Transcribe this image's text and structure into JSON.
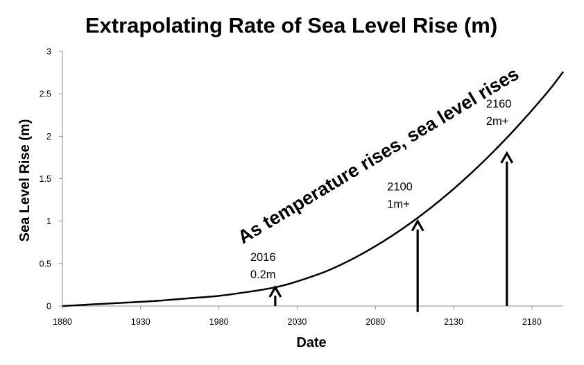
{
  "chart_data": {
    "type": "line",
    "title": "Extrapolating Rate of Sea Level Rise (m)",
    "xlabel": "Date",
    "ylabel": "Sea Level Rise (m)",
    "xlim": [
      1880,
      2200
    ],
    "ylim": [
      0,
      3
    ],
    "x_ticks": [
      1880,
      1930,
      1980,
      2030,
      2080,
      2130,
      2180
    ],
    "y_ticks": [
      0,
      0.5,
      1,
      1.5,
      2,
      2.5,
      3
    ],
    "y_tick_labels": [
      "0",
      "0.5",
      "1",
      "1.5",
      "2",
      "2.5",
      "3"
    ],
    "grid": false,
    "line_color": "#000000",
    "series": [
      {
        "x": [
          1880,
          1900,
          1920,
          1940,
          1960,
          1980,
          2000,
          2016,
          2030,
          2050,
          2070,
          2090,
          2110,
          2130,
          2150,
          2170,
          2190,
          2200
        ],
        "y": [
          0,
          0.02,
          0.04,
          0.06,
          0.09,
          0.12,
          0.17,
          0.22,
          0.29,
          0.42,
          0.6,
          0.82,
          1.08,
          1.38,
          1.72,
          2.1,
          2.52,
          2.76
        ]
      }
    ],
    "annotations": [
      {
        "year_label": "2016",
        "value_label": "0.2m",
        "x": 2016,
        "arrow_from_y": 0,
        "arrow_to_y": 0.22
      },
      {
        "year_label": "2100",
        "value_label": "1m+",
        "x": 2107,
        "arrow_from_y": -0.07,
        "arrow_to_y": 1.0
      },
      {
        "year_label": "2160",
        "value_label": "2m+",
        "x": 2164,
        "arrow_from_y": 0,
        "arrow_to_y": 1.8
      }
    ],
    "diagonal_label": "As temperature rises, sea level rises"
  }
}
